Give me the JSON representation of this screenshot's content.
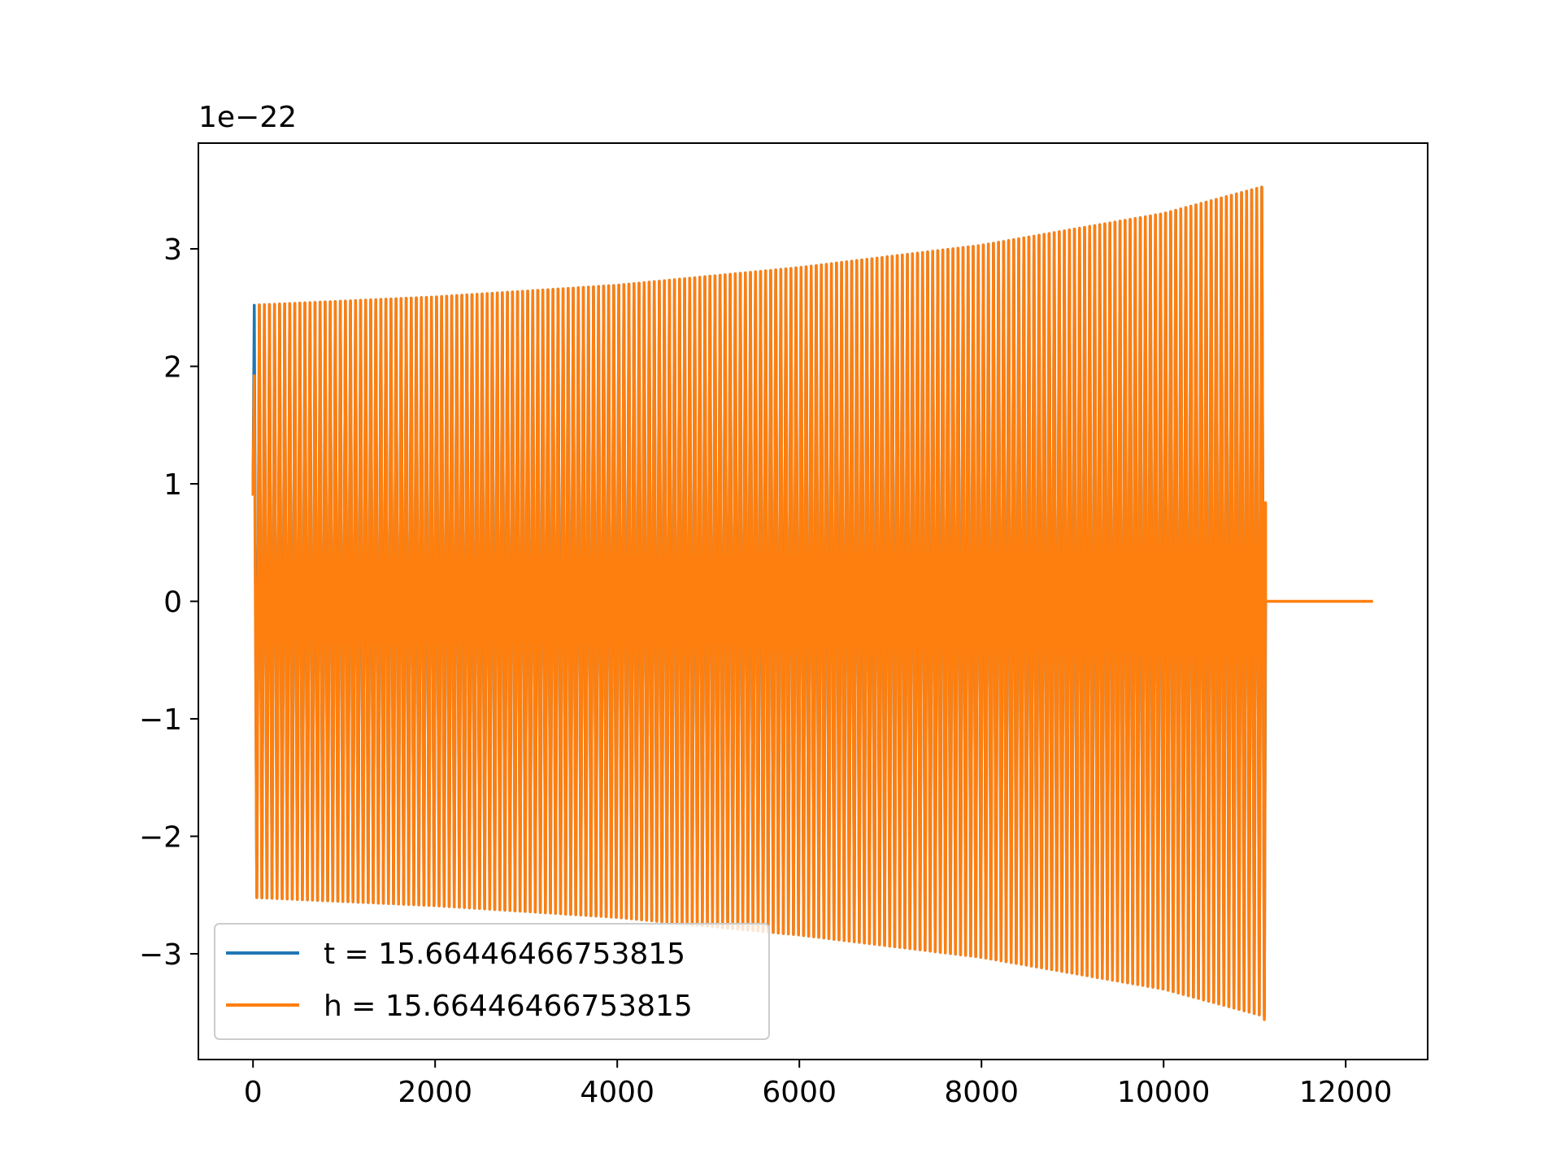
{
  "chart_data": {
    "type": "line",
    "title": "",
    "xlabel": "",
    "ylabel": "",
    "y_offset_text": "1e−22",
    "xlim": [
      -600,
      12900
    ],
    "ylim": [
      -3.9,
      3.9
    ],
    "y_scale_factor": 1e-22,
    "xticks": [
      0,
      2000,
      4000,
      6000,
      8000,
      10000,
      12000
    ],
    "xtick_labels": [
      "0",
      "2000",
      "4000",
      "6000",
      "8000",
      "10000",
      "12000"
    ],
    "yticks": [
      -3,
      -2,
      -1,
      0,
      1,
      2,
      3
    ],
    "ytick_labels": [
      "−3",
      "−2",
      "−1",
      "0",
      "1",
      "2",
      "3"
    ],
    "grid": false,
    "legend_position": "lower-left",
    "series": [
      {
        "name": "t = 15.66446466753815",
        "color": "#1f77b4",
        "x_start": 0,
        "x_end": 11120,
        "start_value": 0.9,
        "cycles": 200,
        "envelope": [
          [
            0,
            2.52
          ],
          [
            2000,
            2.59
          ],
          [
            4000,
            2.69
          ],
          [
            6000,
            2.84
          ],
          [
            8000,
            3.03
          ],
          [
            10000,
            3.3
          ],
          [
            11100,
            3.53
          ]
        ],
        "note_hidden_under": "h"
      },
      {
        "name": "h = 15.66446466753815",
        "color": "#ff7f0e",
        "x_start": 0,
        "x_end": 12300,
        "start_value": 0.9,
        "first_peak": 1.92,
        "cycles": 200,
        "envelope": [
          [
            0,
            2.52
          ],
          [
            2000,
            2.59
          ],
          [
            4000,
            2.69
          ],
          [
            6000,
            2.84
          ],
          [
            8000,
            3.03
          ],
          [
            10000,
            3.3
          ],
          [
            11100,
            3.53
          ]
        ],
        "min_peak": -3.56,
        "ringdown_end_x": 11120,
        "ringdown_end_value": 0.84,
        "flat_from_x": 11120,
        "flat_to_x": 12300,
        "flat_value": 0.0
      }
    ]
  }
}
